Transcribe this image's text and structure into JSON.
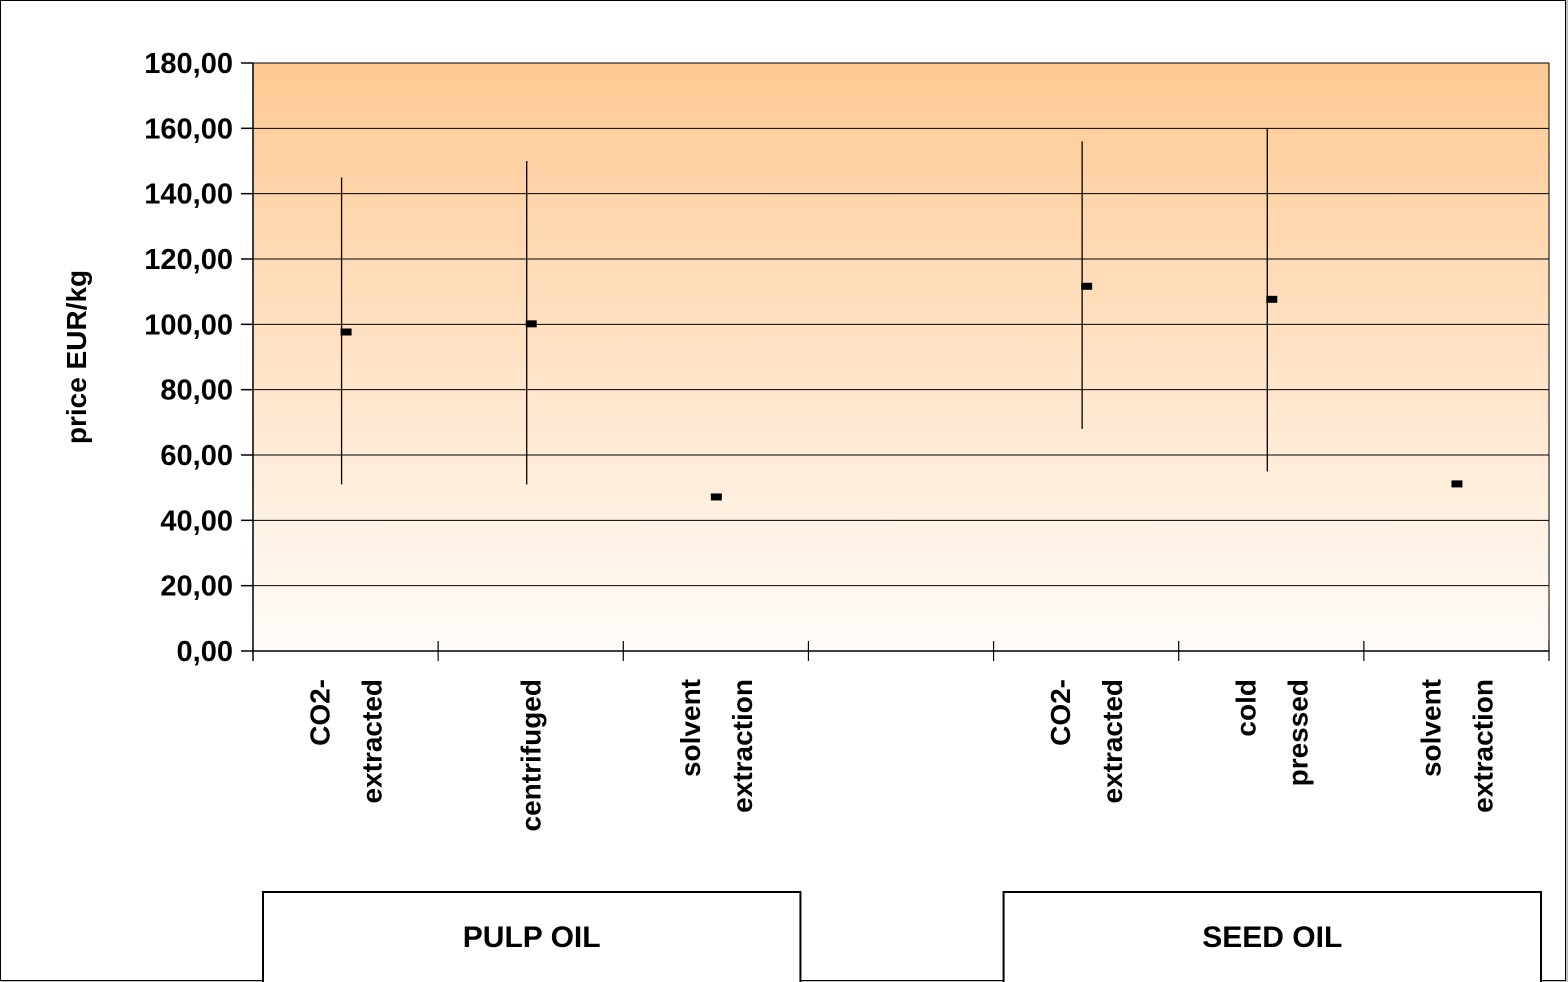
{
  "chart_data": {
    "type": "scatter",
    "subtype": "high-low-mid",
    "title": "",
    "ylabel": "price EUR/kg",
    "xlabel": "",
    "ylim": [
      0,
      180
    ],
    "ytick_step": 20,
    "ytick_labels": [
      "0,00",
      "20,00",
      "40,00",
      "60,00",
      "80,00",
      "100,00",
      "120,00",
      "140,00",
      "160,00",
      "180,00"
    ],
    "grid": true,
    "legend": "none",
    "colors": {
      "plot_top": "#ffc993",
      "plot_bottom": "#fffcf9",
      "marker": "#000000",
      "line": "#000000"
    },
    "groups": [
      {
        "label": "PULP OIL",
        "categories": [
          "CO2-extracted",
          "centrifuged",
          "solvent extraction"
        ]
      },
      {
        "label": "SEED OIL",
        "categories": [
          "CO2-extracted",
          "cold pressed",
          "solvent extraction"
        ]
      }
    ],
    "categories": [
      {
        "group": "PULP OIL",
        "label_lines": [
          "CO2-",
          "extracted"
        ],
        "slot": 0
      },
      {
        "group": "PULP OIL",
        "label_lines": [
          "centrifuged"
        ],
        "slot": 1
      },
      {
        "group": "PULP OIL",
        "label_lines": [
          "solvent",
          "extraction"
        ],
        "slot": 2
      },
      {
        "group": "SEED OIL",
        "label_lines": [
          "CO2-",
          "extracted"
        ],
        "slot": 4
      },
      {
        "group": "SEED OIL",
        "label_lines": [
          "cold",
          "pressed"
        ],
        "slot": 5
      },
      {
        "group": "SEED OIL",
        "label_lines": [
          "solvent",
          "extraction"
        ],
        "slot": 6
      }
    ],
    "slot_count": 7,
    "series": [
      {
        "stat": "high",
        "values": [
          145,
          150,
          null,
          156,
          160,
          null
        ]
      },
      {
        "stat": "low",
        "values": [
          51,
          51,
          null,
          68,
          55,
          null
        ]
      },
      {
        "stat": "mean",
        "values": [
          97.5,
          100,
          47,
          111.5,
          107.5,
          51
        ]
      }
    ]
  }
}
